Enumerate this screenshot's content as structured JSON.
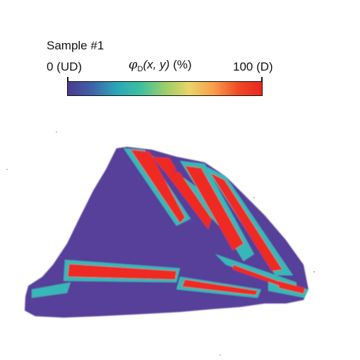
{
  "figure": {
    "sample_label": "Sample #1",
    "colorbar": {
      "min_label": "0 (UD)",
      "max_label": "100 (D)",
      "quantity_symbol": "φ",
      "quantity_subscript": "D",
      "quantity_vars": "(x, y)",
      "quantity_unit": " (%)",
      "colors": [
        "#4a3b8f",
        "#3f62a8",
        "#2aa5b8",
        "#3cc0a0",
        "#9acd6a",
        "#e9d56a",
        "#f7a04a",
        "#f04a2a",
        "#e8281e"
      ]
    },
    "map": {
      "background_color": "#563f9a",
      "domain_color": "#ef2a22",
      "boundary_color": "#39b7b8"
    }
  }
}
